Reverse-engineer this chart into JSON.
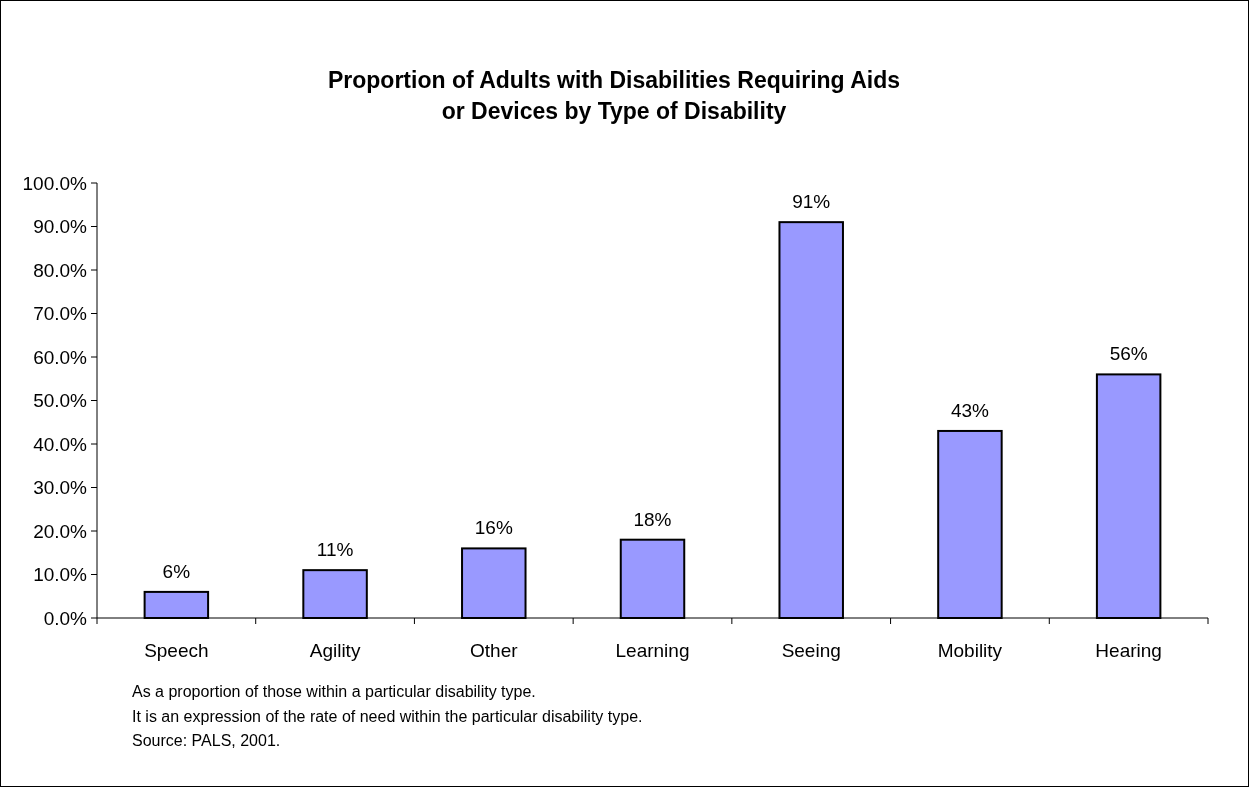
{
  "chart_data": {
    "type": "bar",
    "title": "Proportion of Adults with Disabilities Requiring Aids\nor Devices by Type of Disability",
    "categories": [
      "Speech",
      "Agility",
      "Other",
      "Learning",
      "Seeing",
      "Mobility",
      "Hearing"
    ],
    "values": [
      6,
      11,
      16,
      18,
      91,
      43,
      56
    ],
    "value_labels": [
      "6%",
      "11%",
      "16%",
      "18%",
      "91%",
      "43%",
      "56%"
    ],
    "color": "#9999ff",
    "ylim": [
      0,
      100
    ],
    "yticks": [
      {
        "value": 0,
        "label": "0.0%"
      },
      {
        "value": 10,
        "label": "10.0%"
      },
      {
        "value": 20,
        "label": "20.0%"
      },
      {
        "value": 30,
        "label": "30.0%"
      },
      {
        "value": 40,
        "label": "40.0%"
      },
      {
        "value": 50,
        "label": "50.0%"
      },
      {
        "value": 60,
        "label": "60.0%"
      },
      {
        "value": 70,
        "label": "70.0%"
      },
      {
        "value": 80,
        "label": "80.0%"
      },
      {
        "value": 90,
        "label": "90.0%"
      },
      {
        "value": 100,
        "label": "100.0%"
      }
    ],
    "grid": false,
    "annotations": [
      "As a proportion of those within a particular disability type.",
      "It is an expression of the rate of need within the particular disability type.",
      "Source: PALS, 2001."
    ]
  }
}
